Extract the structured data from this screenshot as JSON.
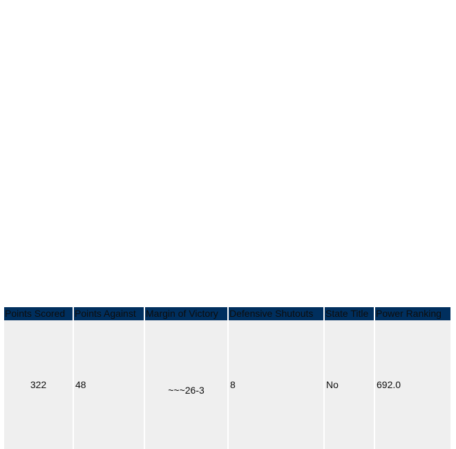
{
  "table": {
    "headers": [
      "Points Scored",
      "Points Against",
      "Margin of Victory",
      "Defensive Shutouts",
      "State Title",
      "Power Ranking"
    ],
    "row": {
      "points_scored": "322",
      "points_against": "48",
      "margin_of_victory": "~~~26-3",
      "defensive_shutouts": "8",
      "state_title": "No",
      "power_ranking": "692.0"
    },
    "header_bg_color": "#002f5e",
    "cell_bg_color": "#efefef"
  }
}
